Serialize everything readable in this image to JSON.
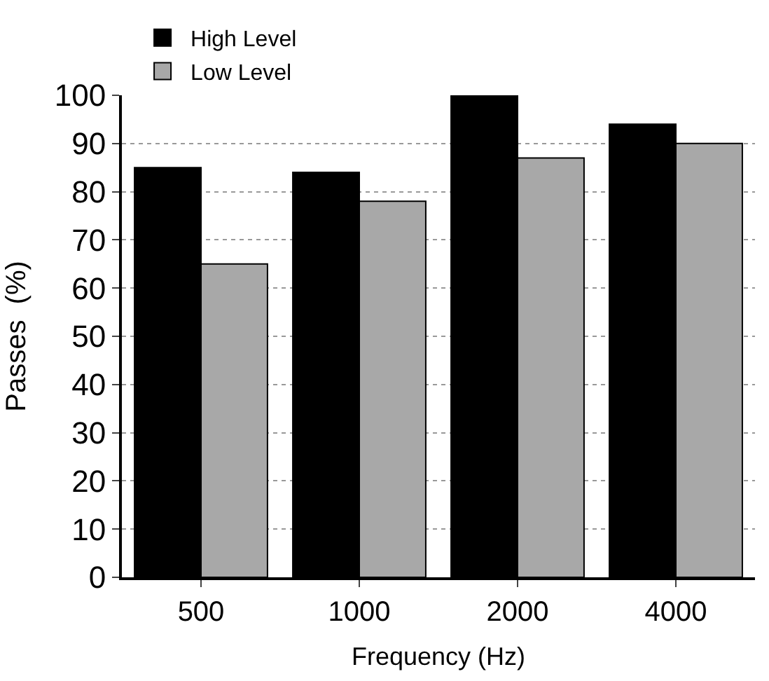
{
  "chart_data": {
    "type": "bar",
    "xlabel": "Frequency (Hz)",
    "ylabel": "Passes  (%)",
    "categories": [
      "500",
      "1000",
      "2000",
      "4000"
    ],
    "series": [
      {
        "name": "High Level",
        "color": "#000000",
        "values": [
          85,
          84,
          100,
          94
        ]
      },
      {
        "name": "Low Level",
        "color": "#a8a8a8",
        "values": [
          65,
          78,
          87,
          90
        ]
      }
    ],
    "ylim": [
      0,
      100
    ],
    "yticks": [
      0,
      10,
      20,
      30,
      40,
      50,
      60,
      70,
      80,
      90,
      100
    ],
    "grid": "y",
    "legend": "top left"
  }
}
